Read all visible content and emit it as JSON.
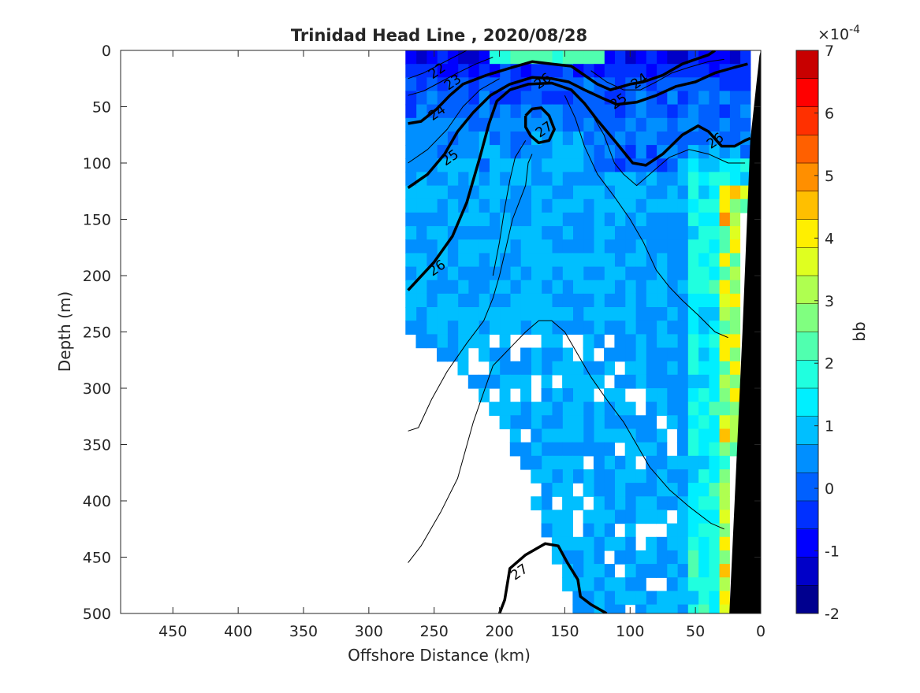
{
  "chart_data": {
    "type": "contourf",
    "title": "Trinidad Head Line , 2020/08/28",
    "xlabel": "Offshore Distance (km)",
    "ylabel": "Depth (m)",
    "xlim": [
      490,
      0
    ],
    "ylim": [
      0,
      500
    ],
    "x_direction": "reversed",
    "y_direction": "reversed",
    "xticks": [
      450,
      400,
      350,
      300,
      250,
      200,
      150,
      100,
      50,
      0
    ],
    "yticks": [
      0,
      50,
      100,
      150,
      200,
      250,
      300,
      350,
      400,
      450,
      500
    ],
    "colorbar": {
      "label": "bb",
      "exponent_label": "×10",
      "exponent_power": "-4",
      "ticks": [
        -2,
        -1,
        0,
        1,
        2,
        3,
        4,
        5,
        6,
        7
      ],
      "levels": [
        -2,
        -1.5,
        -1,
        -0.5,
        0,
        0.5,
        1,
        1.5,
        2,
        2.5,
        3,
        3.5,
        4,
        4.5,
        5,
        5.5,
        6,
        6.5,
        7
      ],
      "colors": [
        "#00008f",
        "#0000c8",
        "#0000ff",
        "#0030ff",
        "#0060ff",
        "#008fff",
        "#00bfff",
        "#00efff",
        "#20ffdf",
        "#50ffaf",
        "#80ff80",
        "#afff50",
        "#dfff20",
        "#ffef00",
        "#ffbf00",
        "#ff8f00",
        "#ff6000",
        "#ff3000",
        "#ff0000",
        "#c80000"
      ]
    },
    "bathymetry_color": "#000000",
    "contour_labels": [
      {
        "text": "22",
        "x": 248,
        "y": 18
      },
      {
        "text": "23",
        "x": 236,
        "y": 28
      },
      {
        "text": "24",
        "x": 248,
        "y": 55
      },
      {
        "text": "25",
        "x": 238,
        "y": 95
      },
      {
        "text": "26",
        "x": 248,
        "y": 193
      },
      {
        "text": "26",
        "x": 167,
        "y": 27
      },
      {
        "text": "27",
        "x": 166,
        "y": 70
      },
      {
        "text": "24",
        "x": 93,
        "y": 27
      },
      {
        "text": "25",
        "x": 109,
        "y": 45
      },
      {
        "text": "26",
        "x": 35,
        "y": 80
      },
      {
        "text": "27",
        "x": 185,
        "y": 463
      }
    ],
    "contour_lines": [
      {
        "level": 24,
        "heavy": true,
        "points": [
          [
            270,
            65
          ],
          [
            260,
            63
          ],
          [
            248,
            52
          ],
          [
            238,
            40
          ],
          [
            228,
            30
          ],
          [
            210,
            22
          ],
          [
            190,
            15
          ],
          [
            175,
            10
          ],
          [
            160,
            12
          ],
          [
            145,
            14
          ],
          [
            135,
            22
          ],
          [
            125,
            30
          ],
          [
            115,
            35
          ],
          [
            100,
            30
          ],
          [
            90,
            28
          ],
          [
            75,
            22
          ],
          [
            60,
            12
          ],
          [
            50,
            8
          ],
          [
            40,
            4
          ],
          [
            35,
            0
          ]
        ]
      },
      {
        "level": 25,
        "heavy": true,
        "points": [
          [
            270,
            122
          ],
          [
            255,
            110
          ],
          [
            242,
            92
          ],
          [
            232,
            72
          ],
          [
            220,
            55
          ],
          [
            207,
            40
          ],
          [
            192,
            30
          ],
          [
            175,
            24
          ],
          [
            160,
            25
          ],
          [
            147,
            28
          ],
          [
            135,
            35
          ],
          [
            122,
            42
          ],
          [
            110,
            48
          ],
          [
            95,
            46
          ],
          [
            80,
            40
          ],
          [
            65,
            32
          ],
          [
            50,
            28
          ],
          [
            35,
            20
          ],
          [
            20,
            15
          ],
          [
            10,
            12
          ]
        ]
      },
      {
        "level": 26,
        "heavy": true,
        "points": [
          [
            270,
            213
          ],
          [
            262,
            203
          ],
          [
            250,
            188
          ],
          [
            236,
            165
          ],
          [
            225,
            135
          ],
          [
            215,
            95
          ],
          [
            208,
            65
          ],
          [
            202,
            45
          ],
          [
            192,
            35
          ],
          [
            178,
            30
          ],
          [
            160,
            29
          ],
          [
            145,
            35
          ],
          [
            135,
            47
          ],
          [
            125,
            62
          ],
          [
            112,
            80
          ],
          [
            98,
            100
          ],
          [
            88,
            102
          ],
          [
            75,
            92
          ],
          [
            60,
            75
          ],
          [
            48,
            67
          ],
          [
            40,
            72
          ],
          [
            30,
            85
          ],
          [
            20,
            85
          ],
          [
            12,
            80
          ],
          [
            8,
            78
          ]
        ]
      },
      {
        "level": 27,
        "heavy": true,
        "points": [
          [
            180,
            58
          ],
          [
            175,
            52
          ],
          [
            168,
            51
          ],
          [
            162,
            58
          ],
          [
            158,
            70
          ],
          [
            162,
            80
          ],
          [
            170,
            82
          ],
          [
            176,
            76
          ],
          [
            180,
            68
          ],
          [
            180,
            58
          ]
        ]
      },
      {
        "level": 27,
        "heavy": true,
        "points": [
          [
            200,
            500
          ],
          [
            196,
            488
          ],
          [
            192,
            460
          ],
          [
            180,
            448
          ],
          [
            165,
            438
          ],
          [
            155,
            440
          ],
          [
            148,
            455
          ],
          [
            140,
            470
          ],
          [
            138,
            485
          ],
          [
            130,
            492
          ],
          [
            118,
            500
          ]
        ]
      },
      {
        "level": 26.5,
        "heavy": false,
        "points": [
          [
            270,
            338
          ],
          [
            262,
            335
          ],
          [
            252,
            310
          ],
          [
            240,
            285
          ],
          [
            225,
            260
          ],
          [
            212,
            240
          ],
          [
            205,
            220
          ],
          [
            200,
            200
          ],
          [
            195,
            175
          ],
          [
            190,
            150
          ],
          [
            180,
            120
          ],
          [
            178,
            100
          ],
          [
            175,
            92
          ]
        ]
      },
      {
        "level": 26.7,
        "heavy": false,
        "points": [
          [
            270,
            455
          ],
          [
            260,
            440
          ],
          [
            245,
            410
          ],
          [
            232,
            380
          ],
          [
            220,
            330
          ],
          [
            205,
            280
          ],
          [
            190,
            262
          ],
          [
            180,
            250
          ],
          [
            170,
            240
          ],
          [
            160,
            240
          ],
          [
            150,
            250
          ],
          [
            140,
            270
          ],
          [
            130,
            290
          ],
          [
            118,
            310
          ],
          [
            105,
            330
          ],
          [
            95,
            350
          ],
          [
            85,
            370
          ],
          [
            70,
            390
          ],
          [
            55,
            405
          ],
          [
            38,
            420
          ],
          [
            28,
            425
          ]
        ]
      },
      {
        "level": 26.3,
        "heavy": false,
        "points": [
          [
            180,
            80
          ],
          [
            188,
            95
          ],
          [
            192,
            115
          ],
          [
            196,
            140
          ],
          [
            200,
            170
          ],
          [
            205,
            200
          ]
        ]
      },
      {
        "level": 26.2,
        "heavy": false,
        "points": [
          [
            150,
            40
          ],
          [
            142,
            60
          ],
          [
            135,
            85
          ],
          [
            125,
            110
          ],
          [
            112,
            130
          ],
          [
            100,
            150
          ],
          [
            90,
            170
          ],
          [
            80,
            195
          ],
          [
            70,
            210
          ],
          [
            60,
            222
          ],
          [
            48,
            235
          ],
          [
            35,
            250
          ],
          [
            25,
            255
          ]
        ]
      },
      {
        "level": 25.5,
        "heavy": false,
        "points": [
          [
            270,
            100
          ],
          [
            255,
            88
          ],
          [
            240,
            70
          ],
          [
            228,
            50
          ],
          [
            215,
            35
          ],
          [
            200,
            25
          ]
        ]
      },
      {
        "level": 24.5,
        "heavy": false,
        "points": [
          [
            270,
            40
          ],
          [
            258,
            36
          ],
          [
            245,
            28
          ],
          [
            232,
            20
          ],
          [
            218,
            12
          ],
          [
            205,
            6
          ]
        ]
      },
      {
        "level": 23,
        "heavy": false,
        "points": [
          [
            270,
            25
          ],
          [
            258,
            20
          ],
          [
            245,
            12
          ],
          [
            235,
            6
          ],
          [
            225,
            0
          ]
        ]
      },
      {
        "level": 25.8,
        "heavy": false,
        "points": [
          [
            140,
            40
          ],
          [
            130,
            55
          ],
          [
            120,
            75
          ],
          [
            112,
            100
          ],
          [
            105,
            110
          ],
          [
            95,
            120
          ],
          [
            85,
            110
          ],
          [
            70,
            95
          ],
          [
            55,
            88
          ],
          [
            40,
            92
          ],
          [
            25,
            100
          ],
          [
            12,
            100
          ]
        ]
      },
      {
        "level": 24.8,
        "heavy": false,
        "points": [
          [
            130,
            18
          ],
          [
            118,
            28
          ],
          [
            105,
            35
          ],
          [
            92,
            35
          ],
          [
            80,
            28
          ],
          [
            68,
            20
          ],
          [
            55,
            15
          ],
          [
            40,
            10
          ],
          [
            28,
            8
          ]
        ]
      }
    ]
  }
}
